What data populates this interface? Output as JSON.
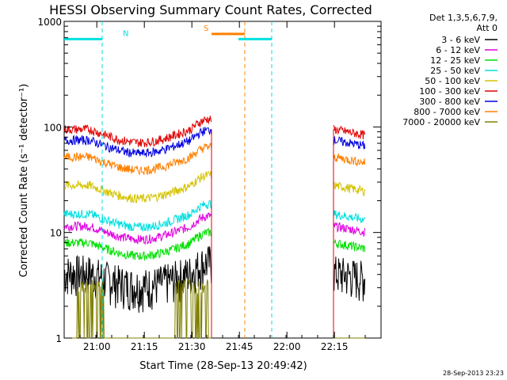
{
  "chart_data": {
    "type": "line",
    "title": "HESSI Observing Summary Count Rates, Corrected",
    "xlabel": "Start Time (28-Sep-13 20:49:42)",
    "ylabel": "Corrected Count Rate (s⁻¹ detector⁻¹)",
    "y_scale": "log",
    "ylim": [
      1,
      1000
    ],
    "xlim_minutes_after_2049": [
      0,
      100
    ],
    "x_ticks": [
      {
        "minute": 10.3,
        "label": "21:00"
      },
      {
        "minute": 25.3,
        "label": "21:15"
      },
      {
        "minute": 40.3,
        "label": "21:30"
      },
      {
        "minute": 55.3,
        "label": "21:45"
      },
      {
        "minute": 70.3,
        "label": "22:00"
      },
      {
        "minute": 85.3,
        "label": "22:15"
      }
    ],
    "y_ticks": [
      {
        "value": 1,
        "label": "1"
      },
      {
        "value": 10,
        "label": "10"
      },
      {
        "value": 100,
        "label": "100"
      },
      {
        "value": 1000,
        "label": "1000"
      }
    ],
    "legend_header": [
      "Det 1,3,5,6,7,9,",
      "Att 0"
    ],
    "legend_position": "right",
    "timestamp": "28-Sep-2013 23:23",
    "series": [
      {
        "name": "3 - 6 keV",
        "color": "#000000",
        "base": 4.2
      },
      {
        "name": "6 - 12 keV",
        "color": "#e000e0",
        "base": 11.5
      },
      {
        "name": "12 - 25 keV",
        "color": "#00e000",
        "base": 8.0
      },
      {
        "name": "25 - 50 keV",
        "color": "#00e0e0",
        "base": 15.0
      },
      {
        "name": "50 - 100 keV",
        "color": "#d4c400",
        "base": 28.0
      },
      {
        "name": "100 - 300 keV",
        "color": "#e00000",
        "base": 95.0
      },
      {
        "name": "300 - 800 keV",
        "color": "#0000e0",
        "base": 75.0
      },
      {
        "name": "800 - 7000 keV",
        "color": "#ff8000",
        "base": 52.0
      },
      {
        "name": "7000 - 20000 keV",
        "color": "#808000",
        "base": 1.0
      }
    ],
    "bars": [
      {
        "label": "N",
        "color": "#00e0e0",
        "value": 680,
        "x_start": 0,
        "x_end": 12,
        "x_marker": 12
      },
      {
        "label": "S",
        "color": "#ff8000",
        "value": 760,
        "x_start": 46.5,
        "x_end": 57,
        "x_marker": 57
      },
      {
        "label": "",
        "color": "#00e0e0",
        "value": 680,
        "x_start": 55,
        "x_end": 65.5,
        "x_marker": 65.5
      }
    ]
  }
}
